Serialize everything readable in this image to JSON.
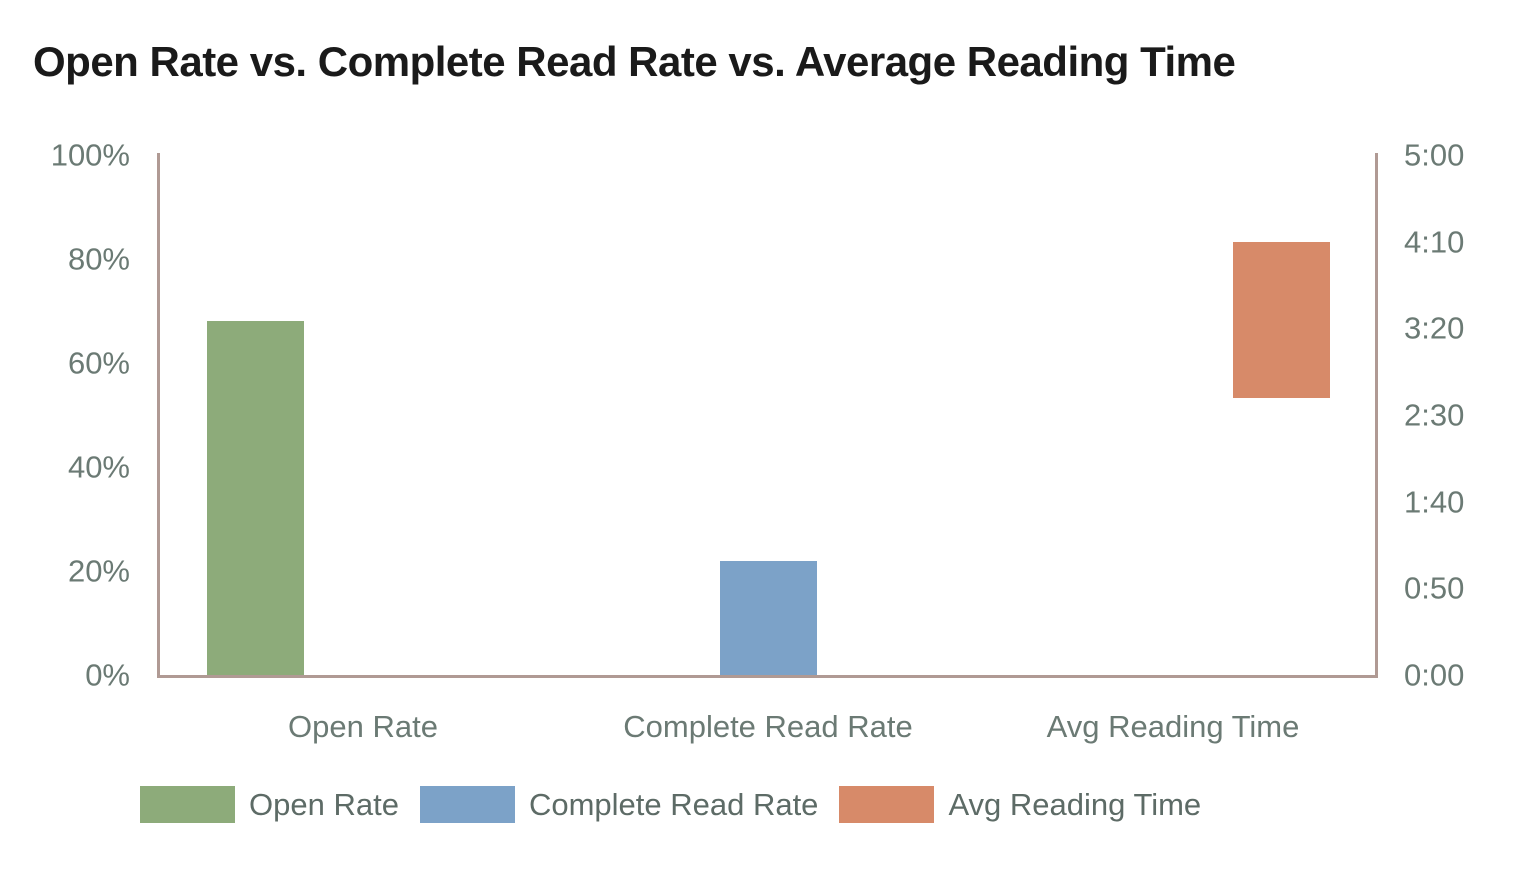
{
  "chart_data": {
    "type": "bar",
    "title": "Open Rate vs. Complete Read Rate vs. Average Reading Time",
    "categories": [
      "Open Rate",
      "Complete Read Rate",
      "Avg Reading Time"
    ],
    "series": [
      {
        "name": "Open Rate",
        "color": "#8dab7a",
        "axis": "left",
        "unit": "percent",
        "values": [
          68,
          null,
          null
        ]
      },
      {
        "name": "Complete Read Rate",
        "color": "#7ca2c8",
        "axis": "left",
        "unit": "percent",
        "values": [
          null,
          22,
          null
        ]
      },
      {
        "name": "Avg Reading Time",
        "color": "#d78a69",
        "axis": "right",
        "unit": "minutes:seconds",
        "values": [
          null,
          null,
          {
            "from": "2:40",
            "to": "4:10",
            "from_seconds": 160,
            "to_seconds": 250
          }
        ]
      }
    ],
    "left_axis": {
      "ticks": [
        "100%",
        "80%",
        "60%",
        "40%",
        "20%",
        "0%"
      ],
      "min": 0,
      "max": 100
    },
    "right_axis": {
      "ticks": [
        "5:00",
        "4:10",
        "3:20",
        "2:30",
        "1:40",
        "0:50",
        "0:00"
      ],
      "min_seconds": 0,
      "max_seconds": 300
    },
    "legend": [
      {
        "label": "Open Rate",
        "color": "#8dab7a"
      },
      {
        "label": "Complete Read Rate",
        "color": "#7ca2c8"
      },
      {
        "label": "Avg Reading Time",
        "color": "#d78a69"
      }
    ],
    "legend_position": "bottom",
    "grid": false,
    "colors": {
      "axis_line": "#b09a94",
      "tick_label": "#6b7a74",
      "category_label": "#6b7a74",
      "legend_label": "#5d6b66",
      "title": "#1a1a1a",
      "background": "#ffffff"
    }
  }
}
